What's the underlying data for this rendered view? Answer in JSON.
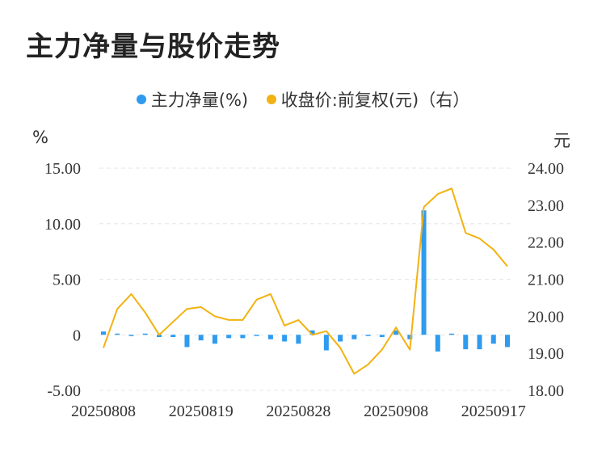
{
  "title": "主力净量与股价走势",
  "left_unit": "%",
  "right_unit": "元",
  "colors": {
    "bar": "#2e9bf0",
    "line": "#f2b211",
    "grid": "#e6e6e6",
    "text": "#333333"
  },
  "chart_data": {
    "type": "bar+line",
    "title": "主力净量与股价走势",
    "legend": [
      {
        "name": "主力净量(%)",
        "color": "#2e9bf0"
      },
      {
        "name": "收盘价:前复权(元)（右）",
        "color": "#f2b211"
      }
    ],
    "x_tick_labels": [
      "20250808",
      "20250819",
      "20250828",
      "20250908",
      "20250917"
    ],
    "x_tick_indices": [
      0,
      7,
      14,
      21,
      28
    ],
    "y_left": {
      "min": -5,
      "max": 15,
      "ticks": [
        "15.00",
        "10.00",
        "5.00",
        "0",
        "-5.00"
      ],
      "tick_values": [
        15,
        10,
        5,
        0,
        -5
      ]
    },
    "y_right": {
      "min": 18,
      "max": 24,
      "ticks": [
        "24.00",
        "23.00",
        "22.00",
        "21.00",
        "20.00",
        "19.00",
        "18.00"
      ],
      "tick_values": [
        24,
        23,
        22,
        21,
        20,
        19,
        18
      ]
    },
    "grid": true,
    "series": [
      {
        "name": "主力净量(%)",
        "type": "bar",
        "axis": "left",
        "values": [
          0.3,
          0.1,
          -0.1,
          0.1,
          -0.2,
          -0.2,
          -1.1,
          -0.5,
          -0.8,
          -0.3,
          -0.3,
          -0.1,
          -0.4,
          -0.6,
          -0.8,
          0.4,
          -1.4,
          -0.6,
          -0.4,
          -0.1,
          -0.2,
          0.4,
          -0.4,
          11.2,
          -1.5,
          0.0,
          -1.3,
          -1.3,
          -0.8,
          -1.1
        ]
      },
      {
        "name": "收盘价:前复权(元)（右）",
        "type": "line",
        "axis": "right",
        "values": [
          19.15,
          20.2,
          20.6,
          20.1,
          19.5,
          19.85,
          20.2,
          20.25,
          20.0,
          19.9,
          19.9,
          20.45,
          20.6,
          19.75,
          19.9,
          19.5,
          19.6,
          19.15,
          18.45,
          18.7,
          19.1,
          19.7,
          19.1,
          22.95,
          23.3,
          23.45,
          22.25,
          22.1,
          21.8,
          21.35
        ]
      }
    ]
  }
}
